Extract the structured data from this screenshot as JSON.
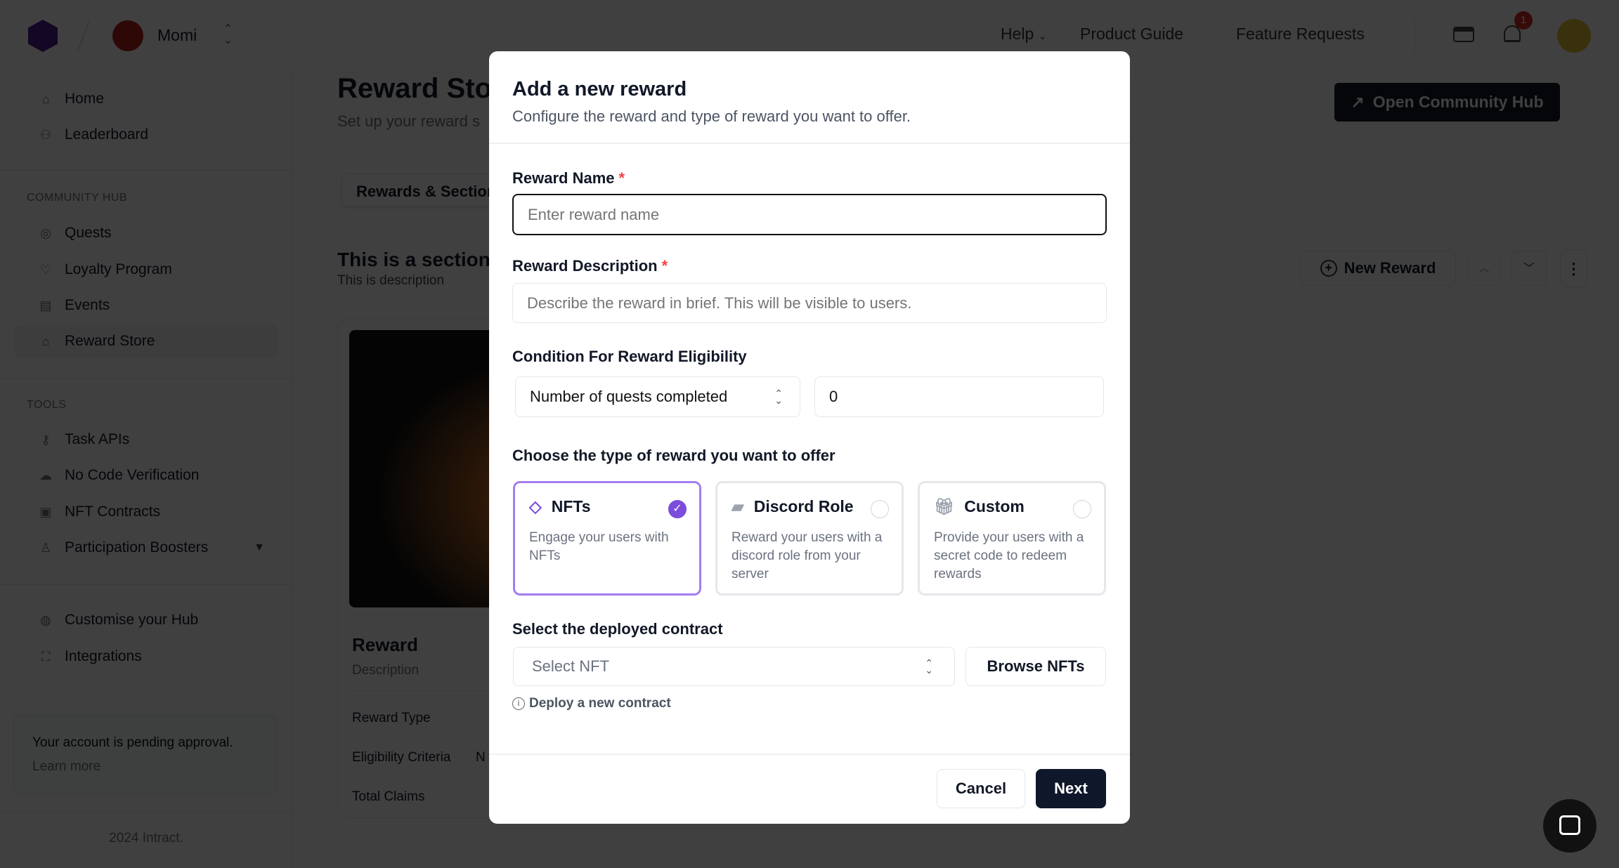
{
  "header": {
    "org_name": "Momi",
    "nav": [
      "Help",
      "Product Guide",
      "Feature Requests"
    ],
    "notification_count": "1"
  },
  "sidebar": {
    "top": [
      {
        "label": "Home",
        "icon": "home-icon"
      },
      {
        "label": "Leaderboard",
        "icon": "users-icon"
      }
    ],
    "community_hub_title": "COMMUNITY HUB",
    "community_hub": [
      {
        "label": "Quests",
        "icon": "compass-icon"
      },
      {
        "label": "Loyalty Program",
        "icon": "heart-icon"
      },
      {
        "label": "Events",
        "icon": "calendar-icon"
      },
      {
        "label": "Reward Store",
        "icon": "store-icon",
        "selected": true
      }
    ],
    "tools_title": "TOOLS",
    "tools": [
      {
        "label": "Task APIs",
        "icon": "key-icon"
      },
      {
        "label": "No Code Verification",
        "icon": "cloud-icon"
      },
      {
        "label": "NFT Contracts",
        "icon": "contract-icon"
      },
      {
        "label": "Participation Boosters",
        "icon": "user-icon"
      }
    ],
    "bottom": [
      {
        "label": "Customise your Hub",
        "icon": "palette-icon"
      },
      {
        "label": "Integrations",
        "icon": "integrations-icon"
      }
    ],
    "pending": {
      "title": "Your account is pending approval.",
      "link": "Learn more"
    },
    "footer": "2024 Intract."
  },
  "main": {
    "title": "Reward Store",
    "subtitle": "Set up your reward s",
    "tab": "Rewards & Sections",
    "open_hub": "Open Community Hub",
    "section_title": "This is a section",
    "section_desc": "This is description",
    "new_reward": "New Reward",
    "card": {
      "title": "Reward",
      "desc": "Description",
      "rows": [
        "Reward Type",
        "Eligibility Criteria",
        "Total Claims"
      ],
      "eligibility_value_partial": "N"
    }
  },
  "modal": {
    "title": "Add a new reward",
    "subtitle": "Configure the reward and type of reward you want to offer.",
    "name_label": "Reward Name",
    "name_placeholder": "Enter reward name",
    "desc_label": "Reward Description",
    "desc_placeholder": "Describe the reward in brief. This will be visible to users.",
    "condition_label": "Condition For Reward Eligibility",
    "condition_value": "Number of quests completed",
    "condition_count": "0",
    "type_label": "Choose the type of reward you want to offer",
    "types": [
      {
        "title": "NFTs",
        "desc": "Engage your users with NFTs",
        "selected": true
      },
      {
        "title": "Discord Role",
        "desc": "Reward your users with a discord role from your server",
        "selected": false
      },
      {
        "title": "Custom",
        "desc": "Provide your users with a secret code to redeem rewards",
        "selected": false
      }
    ],
    "contract_label": "Select the deployed contract",
    "contract_placeholder": "Select NFT",
    "browse": "Browse NFTs",
    "deploy_link": "Deploy a new contract",
    "cancel": "Cancel",
    "next": "Next",
    "accent": "#7c4ddc"
  }
}
